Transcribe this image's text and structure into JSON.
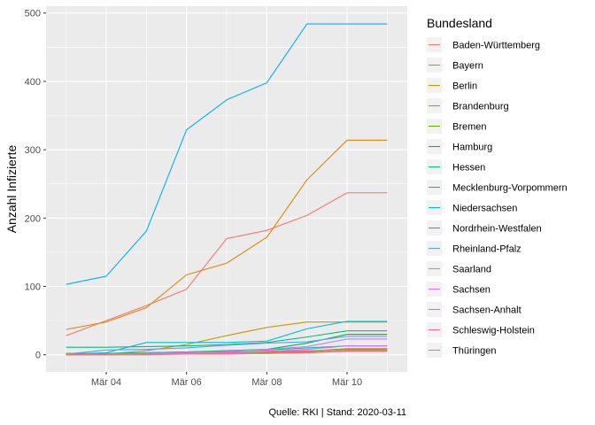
{
  "chart_data": {
    "type": "line",
    "title": "",
    "xlabel": "",
    "ylabel": "Anzahl Infizierte",
    "caption": "Quelle: RKI | Stand: 2020-03-11",
    "legend_title": "Bundesland",
    "legend_position": "right",
    "grid": true,
    "background": "#ebebeb",
    "x": [
      "2020-03-03",
      "2020-03-04",
      "2020-03-05",
      "2020-03-06",
      "2020-03-07",
      "2020-03-08",
      "2020-03-09",
      "2020-03-10",
      "2020-03-11"
    ],
    "x_ticks": [
      {
        "value": "2020-03-04",
        "label": "Mär 04"
      },
      {
        "value": "2020-03-06",
        "label": "Mär 06"
      },
      {
        "value": "2020-03-08",
        "label": "Mär 08"
      },
      {
        "value": "2020-03-10",
        "label": "Mär 10"
      }
    ],
    "xlim": [
      "2020-03-02T12:00",
      "2020-03-11T12:00"
    ],
    "ylim": [
      -25,
      510
    ],
    "y_ticks": [
      0,
      100,
      200,
      300,
      400,
      500
    ],
    "series": [
      {
        "name": "Baden-Württemberg",
        "color": "#F8766D",
        "values": [
          28,
          50,
          72,
          96,
          170,
          182,
          204,
          237,
          237
        ]
      },
      {
        "name": "Bayern",
        "color": "#E58700",
        "values": [
          37,
          48,
          69,
          117,
          134,
          172,
          256,
          314,
          314
        ]
      },
      {
        "name": "Berlin",
        "color": "#C99800",
        "values": [
          1,
          1,
          6,
          15,
          28,
          40,
          48,
          48,
          48
        ]
      },
      {
        "name": "Brandenburg",
        "color": "#A3A500",
        "values": [
          1,
          1,
          1,
          1,
          2,
          3,
          4,
          8,
          8
        ]
      },
      {
        "name": "Bremen",
        "color": "#6BB100",
        "values": [
          1,
          1,
          2,
          3,
          4,
          4,
          5,
          9,
          9
        ]
      },
      {
        "name": "Hamburg",
        "color": "#00BA38",
        "values": [
          2,
          2,
          3,
          4,
          6,
          8,
          17,
          30,
          30
        ]
      },
      {
        "name": "Hessen",
        "color": "#00BF7D",
        "values": [
          11,
          11,
          12,
          13,
          15,
          18,
          26,
          35,
          35
        ]
      },
      {
        "name": "Mecklenburg-Vorpommern",
        "color": "#00C0AF",
        "values": [
          1,
          2,
          3,
          4,
          5,
          7,
          10,
          13,
          13
        ]
      },
      {
        "name": "Niedersachsen",
        "color": "#00BCD8",
        "values": [
          1,
          3,
          18,
          18,
          18,
          20,
          38,
          49,
          49
        ]
      },
      {
        "name": "Nordrhein-Westfalen",
        "color": "#00B0F6",
        "values": [
          103,
          115,
          181,
          329,
          373,
          398,
          484,
          484,
          484
        ]
      },
      {
        "name": "Rheinland-Pfalz",
        "color": "#619CFF",
        "values": [
          1,
          7,
          8,
          10,
          14,
          17,
          19,
          27,
          27
        ]
      },
      {
        "name": "Saarland",
        "color": "#B983FF",
        "values": [
          0,
          1,
          2,
          3,
          5,
          8,
          12,
          23,
          23
        ]
      },
      {
        "name": "Sachsen",
        "color": "#E76BF3",
        "values": [
          0,
          1,
          1,
          2,
          3,
          5,
          8,
          13,
          13
        ]
      },
      {
        "name": "Sachsen-Anhalt",
        "color": "#FD61D1",
        "values": [
          0,
          0,
          1,
          1,
          2,
          2,
          3,
          6,
          6
        ]
      },
      {
        "name": "Schleswig-Holstein",
        "color": "#FF67A4",
        "values": [
          0,
          0,
          1,
          2,
          3,
          5,
          6,
          7,
          7
        ]
      },
      {
        "name": "Thüringen",
        "color": "#F8766D",
        "values": [
          0,
          0,
          0,
          1,
          1,
          2,
          3,
          5,
          5
        ]
      }
    ]
  }
}
